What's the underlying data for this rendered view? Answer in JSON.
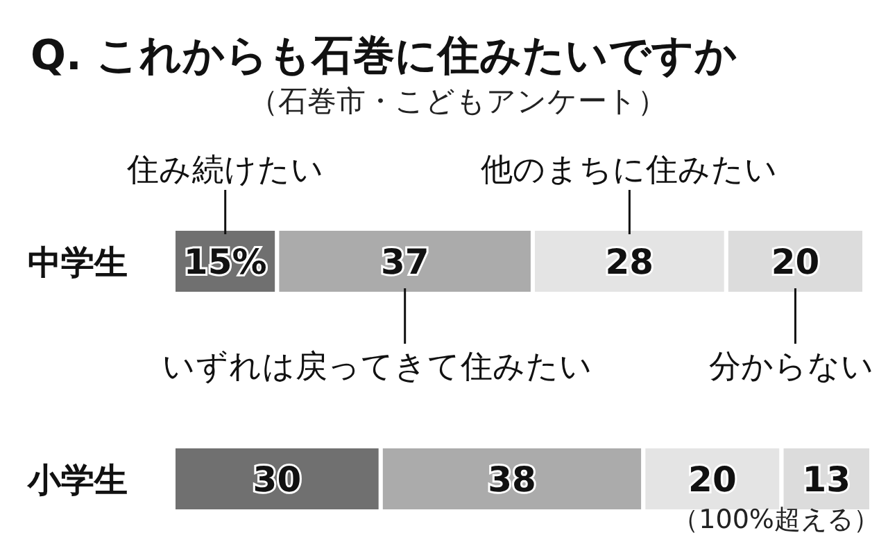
{
  "chart_data": {
    "type": "bar",
    "orientation": "horizontal",
    "stacked": true,
    "title": "Q. これからも石巻に住みたいですか",
    "subtitle": "（石巻市・こどもアンケート）",
    "categories": [
      "中学生",
      "小学生"
    ],
    "series": [
      {
        "name": "住み続けたい",
        "color": "#707070",
        "values": [
          15,
          30
        ],
        "value_labels": [
          "15%",
          "30"
        ]
      },
      {
        "name": "いずれは戻ってきて住みたい",
        "color": "#ababab",
        "values": [
          37,
          38
        ],
        "value_labels": [
          "37",
          "38"
        ]
      },
      {
        "name": "他のまちに住みたい",
        "color": "#e4e4e4",
        "values": [
          28,
          20
        ],
        "value_labels": [
          "28",
          "20"
        ]
      },
      {
        "name": "分からない",
        "color": "#dcdcdc",
        "values": [
          20,
          13
        ],
        "value_labels": [
          "20",
          "13"
        ]
      }
    ],
    "annotations": [
      "（100%超える）"
    ]
  }
}
